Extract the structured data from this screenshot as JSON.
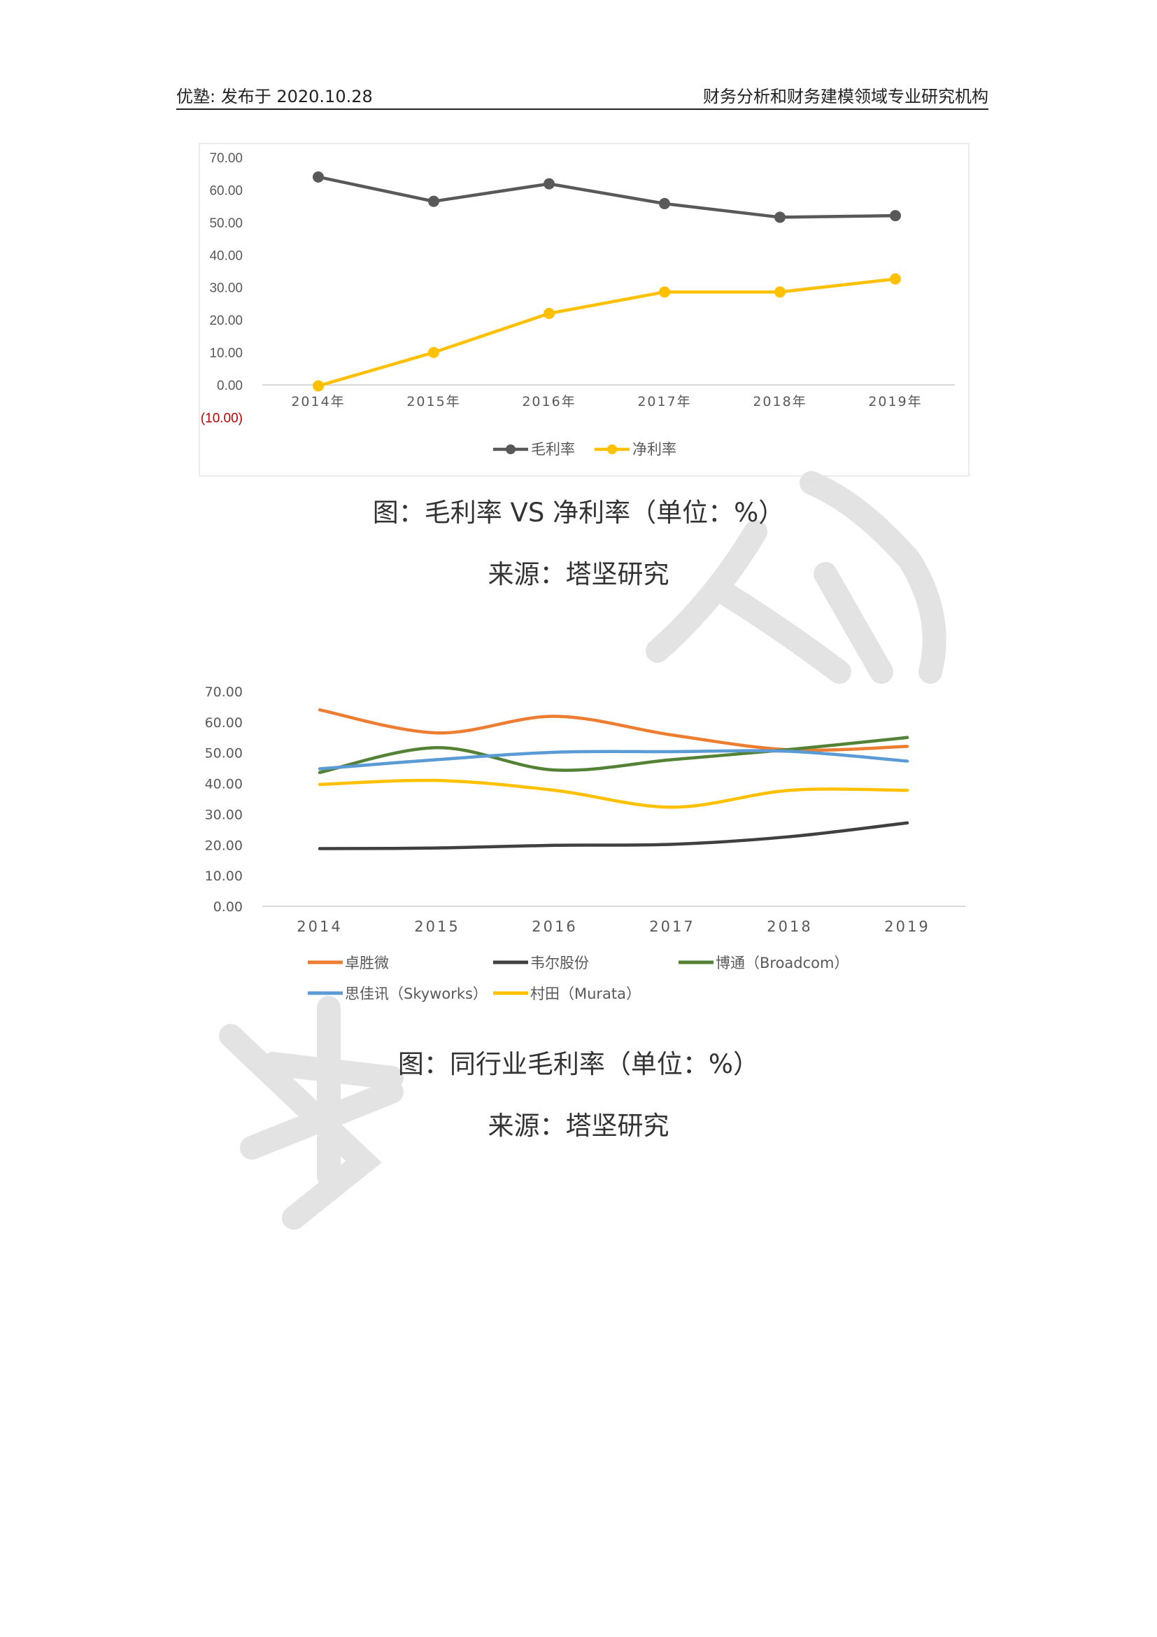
{
  "header": {
    "left": "优塾: 发布于 2020.10.28",
    "right": "财务分析和财务建模领域专业研究机构"
  },
  "chart_data": [
    {
      "type": "line",
      "categories": [
        "2014年",
        "2015年",
        "2016年",
        "2017年",
        "2018年",
        "2019年"
      ],
      "series": [
        {
          "name": "毛利率",
          "color": "#595959",
          "values": [
            64.0,
            56.5,
            61.9,
            55.8,
            51.6,
            52.1
          ]
        },
        {
          "name": "净利率",
          "color": "#FFC000",
          "values": [
            -0.3,
            10.0,
            22.0,
            28.6,
            28.6,
            32.6
          ]
        }
      ],
      "y_ticks": [
        "70.00",
        "60.00",
        "50.00",
        "40.00",
        "30.00",
        "20.00",
        "10.00",
        "0.00",
        "(10.00)"
      ],
      "negative_tick_color": "#C00000",
      "ylim": [
        -10,
        70
      ],
      "legend": "bottom",
      "grid": false
    },
    {
      "type": "line",
      "categories": [
        "2014",
        "2015",
        "2016",
        "2017",
        "2018",
        "2019"
      ],
      "series": [
        {
          "name": "卓胜微",
          "color": "#ED7D31",
          "values": [
            64.0,
            56.5,
            61.9,
            55.8,
            51.0,
            52.1
          ]
        },
        {
          "name": "韦尔股份",
          "color": "#404040",
          "values": [
            18.8,
            19.0,
            19.9,
            20.2,
            22.7,
            27.2
          ]
        },
        {
          "name": "博通（Broadcom）",
          "color": "#548235",
          "values": [
            43.6,
            51.7,
            44.4,
            47.8,
            51.1,
            55.0
          ]
        },
        {
          "name": "思佳讯（Skyworks）",
          "color": "#5B9BD5",
          "values": [
            44.8,
            47.8,
            50.2,
            50.4,
            50.5,
            47.3
          ]
        },
        {
          "name": "村田（Murata）",
          "color": "#FFC000",
          "values": [
            39.7,
            41.0,
            37.8,
            32.3,
            37.8,
            37.8
          ]
        }
      ],
      "y_ticks": [
        "70.00",
        "60.00",
        "50.00",
        "40.00",
        "30.00",
        "20.00",
        "10.00",
        "0.00"
      ],
      "ylim": [
        0,
        70
      ],
      "legend": "bottom",
      "grid": false
    }
  ],
  "captions": {
    "chart1_title": "图：毛利率 VS 净利率（单位：%）",
    "chart1_source": "来源：塔坚研究",
    "chart2_title": "图：同行业毛利率（单位：%）",
    "chart2_source": "来源：塔坚研究"
  },
  "watermark": {
    "color": "#E0E0E0"
  }
}
